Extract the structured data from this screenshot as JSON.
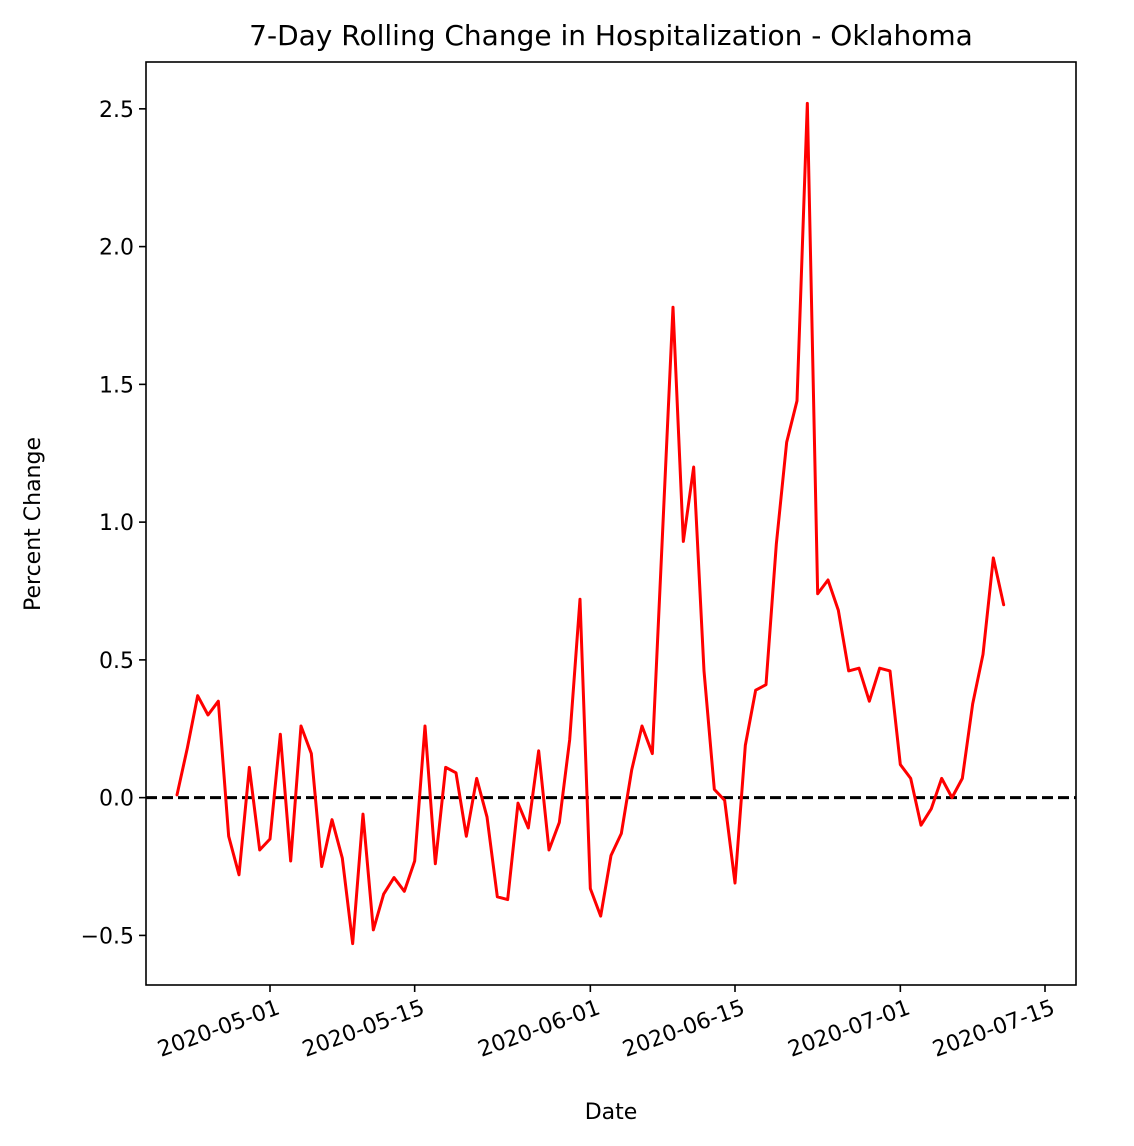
{
  "chart_data": {
    "type": "line",
    "title": "7-Day Rolling Change in Hospitalization - Oklahoma",
    "xlabel": "Date",
    "ylabel": "Percent Change",
    "x_start": "2020-04-22",
    "x_step_days": 1,
    "xlim": [
      "2020-04-19",
      "2020-07-18"
    ],
    "ylim": [
      -0.68,
      2.67
    ],
    "x_ticks": [
      "2020-05-01",
      "2020-05-15",
      "2020-06-01",
      "2020-06-15",
      "2020-07-01",
      "2020-07-15"
    ],
    "x_tick_rotation_deg": -20,
    "y_ticks": [
      -0.5,
      0.0,
      0.5,
      1.0,
      1.5,
      2.0,
      2.5
    ],
    "y_tick_labels": [
      "−0.5",
      "0.0",
      "0.5",
      "1.0",
      "1.5",
      "2.0",
      "2.5"
    ],
    "grid": false,
    "legend": null,
    "reference_line": {
      "y": 0,
      "style": "dashed",
      "color": "#000000"
    },
    "series": [
      {
        "color": "#ff0000",
        "values": [
          0.01,
          0.18,
          0.37,
          0.3,
          0.35,
          -0.14,
          -0.28,
          0.11,
          -0.19,
          -0.15,
          0.23,
          -0.23,
          0.26,
          0.16,
          -0.25,
          -0.08,
          -0.22,
          -0.53,
          -0.06,
          -0.48,
          -0.35,
          -0.29,
          -0.34,
          -0.23,
          0.26,
          -0.24,
          0.11,
          0.09,
          -0.14,
          0.07,
          -0.07,
          -0.36,
          -0.37,
          -0.02,
          -0.11,
          0.17,
          -0.19,
          -0.09,
          0.21,
          0.72,
          -0.33,
          -0.43,
          -0.21,
          -0.13,
          0.1,
          0.26,
          0.16,
          0.97,
          1.78,
          0.93,
          1.2,
          0.46,
          0.03,
          -0.01,
          -0.31,
          0.19,
          0.39,
          0.41,
          0.92,
          1.29,
          1.44,
          2.52,
          0.74,
          0.79,
          0.68,
          0.46,
          0.47,
          0.35,
          0.47,
          0.46,
          0.12,
          0.07,
          -0.1,
          -0.04,
          0.07,
          0.0,
          0.07,
          0.34,
          0.52,
          0.87,
          0.7
        ]
      }
    ]
  }
}
